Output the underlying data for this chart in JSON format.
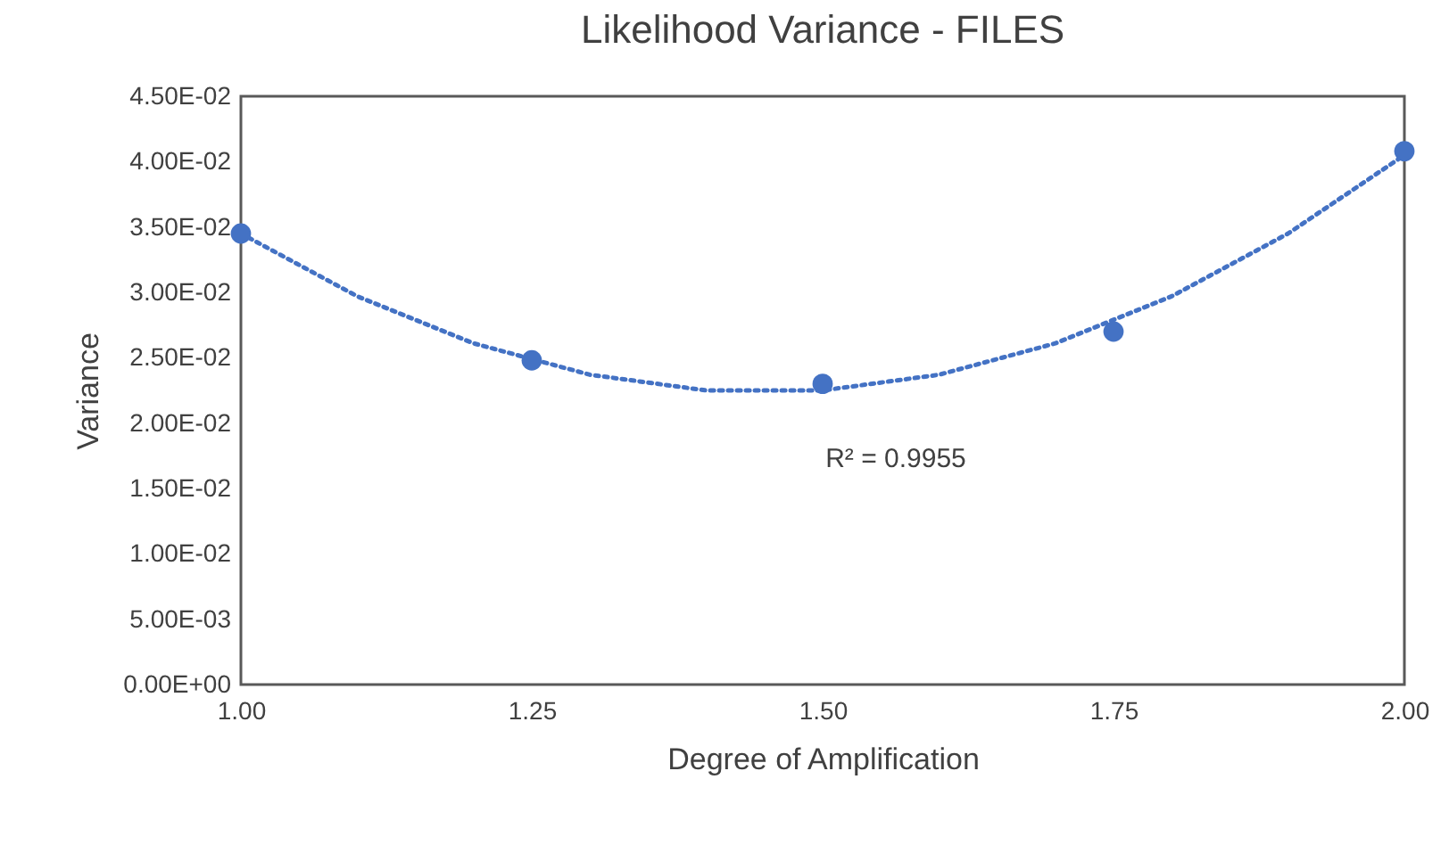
{
  "chart_data": {
    "type": "scatter",
    "title": "Likelihood Variance - FILES",
    "xlabel": "Degree of Amplification",
    "ylabel": "Variance",
    "xlim": [
      1,
      2
    ],
    "xticks": [
      {
        "value": 1,
        "label": "1.00"
      },
      {
        "value": 1.25,
        "label": "1.25"
      },
      {
        "value": 1.5,
        "label": "1.50"
      },
      {
        "value": 1.75,
        "label": "1.75"
      },
      {
        "value": 2,
        "label": "2.00"
      }
    ],
    "ylim": [
      0,
      0.045
    ],
    "yticks": [
      {
        "value": 0,
        "label": "0.00E+00"
      },
      {
        "value": 0.005,
        "label": "5.00E-03"
      },
      {
        "value": 0.01,
        "label": "1.00E-02"
      },
      {
        "value": 0.015,
        "label": "1.50E-02"
      },
      {
        "value": 0.02,
        "label": "2.00E-02"
      },
      {
        "value": 0.025,
        "label": "2.50E-02"
      },
      {
        "value": 0.03,
        "label": "3.00E-02"
      },
      {
        "value": 0.035,
        "label": "3.50E-02"
      },
      {
        "value": 0.04,
        "label": "4.00E-02"
      },
      {
        "value": 0.045,
        "label": "4.50E-02"
      }
    ],
    "grid": false,
    "marker": "circle",
    "series": [
      {
        "color": "#4472c4",
        "x": [
          1,
          1.25,
          1.5,
          1.75,
          2
        ],
        "values": [
          0.0345,
          0.0248,
          0.023,
          0.027,
          0.0408
        ]
      },
      {
        "type": "line",
        "color": "#4472c4",
        "line_style": "dotted",
        "marker": "none",
        "x": [
          1,
          1.1,
          1.2,
          1.3,
          1.4,
          1.5,
          1.6,
          1.7,
          1.8,
          1.9,
          2
        ],
        "values": [
          0.0345,
          0.0297,
          0.0261,
          0.0237,
          0.0225,
          0.0225,
          0.0237,
          0.0261,
          0.0297,
          0.0345,
          0.0405
        ]
      }
    ],
    "annotations": [
      "R² = 0.9955"
    ]
  }
}
